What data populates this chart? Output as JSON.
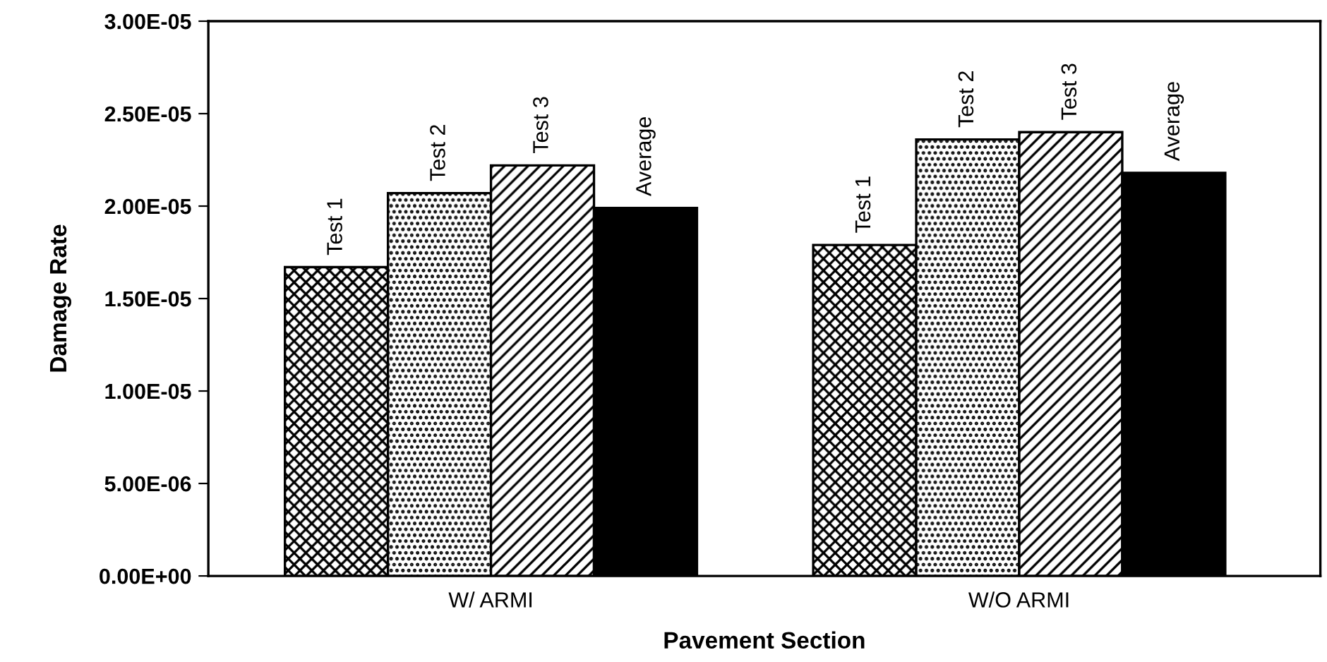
{
  "chart_data": {
    "type": "bar",
    "xlabel": "Pavement Section",
    "ylabel": "Damage Rate",
    "categories": [
      "W/ ARMI",
      "W/O ARMI"
    ],
    "series": [
      {
        "name": "Test 1",
        "color": "#000000",
        "values": [
          1.67e-05,
          1.79e-05
        ]
      },
      {
        "name": "Test 2",
        "color": "#000000",
        "values": [
          2.07e-05,
          2.36e-05
        ]
      },
      {
        "name": "Test 3",
        "color": "#000000",
        "values": [
          2.22e-05,
          2.4e-05
        ]
      },
      {
        "name": "Average",
        "color": "#000000",
        "values": [
          1.99e-05,
          2.18e-05
        ]
      }
    ],
    "ylim": [
      0,
      3e-05
    ],
    "yticks": [
      {
        "value": 0,
        "label": "0.00E+00"
      },
      {
        "value": 5e-06,
        "label": "5.00E-06"
      },
      {
        "value": 1e-05,
        "label": "1.00E-05"
      },
      {
        "value": 1.5e-05,
        "label": "1.50E-05"
      },
      {
        "value": 2e-05,
        "label": "2.00E-05"
      },
      {
        "value": 2.5e-05,
        "label": "2.50E-05"
      },
      {
        "value": 3e-05,
        "label": "3.00E-05"
      }
    ],
    "grid": false,
    "legend": false
  }
}
